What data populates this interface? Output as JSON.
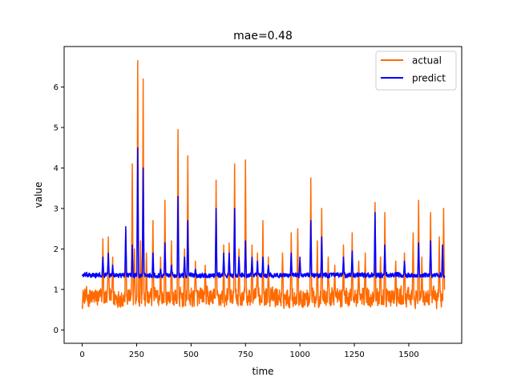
{
  "chart_data": {
    "type": "line",
    "title": "mae=0.48",
    "xlabel": "time",
    "ylabel": "value",
    "xlim": [
      -83,
      1743
    ],
    "ylim": [
      -0.33,
      7.0
    ],
    "x_ticks": [
      0,
      250,
      500,
      750,
      1000,
      1250,
      1500
    ],
    "y_ticks": [
      0,
      1,
      2,
      3,
      4,
      5,
      6
    ],
    "x_tick_labels": [
      "0",
      "250",
      "500",
      "750",
      "1000",
      "1250",
      "1500"
    ],
    "y_tick_labels": [
      "0",
      "1",
      "2",
      "3",
      "4",
      "5",
      "6"
    ],
    "grid": false,
    "legend_position": "top-right",
    "n_points": 1665,
    "series": [
      {
        "name": "actual",
        "color": "#ff6a00",
        "baseline": 0.8,
        "noise": 0.32,
        "min": 0.15,
        "spikes": [
          [
            95,
            2.25
          ],
          [
            120,
            2.3
          ],
          [
            140,
            1.8
          ],
          [
            200,
            2.5
          ],
          [
            230,
            4.1
          ],
          [
            240,
            2.0
          ],
          [
            255,
            6.65
          ],
          [
            268,
            2.2
          ],
          [
            280,
            6.2
          ],
          [
            295,
            1.9
          ],
          [
            325,
            2.7
          ],
          [
            360,
            1.8
          ],
          [
            380,
            3.2
          ],
          [
            410,
            2.2
          ],
          [
            440,
            4.95
          ],
          [
            470,
            2.0
          ],
          [
            485,
            4.3
          ],
          [
            520,
            1.7
          ],
          [
            565,
            1.6
          ],
          [
            615,
            3.7
          ],
          [
            650,
            2.1
          ],
          [
            675,
            2.15
          ],
          [
            700,
            4.1
          ],
          [
            720,
            2.0
          ],
          [
            750,
            4.2
          ],
          [
            780,
            2.1
          ],
          [
            805,
            1.9
          ],
          [
            830,
            2.7
          ],
          [
            855,
            1.8
          ],
          [
            920,
            1.9
          ],
          [
            960,
            2.4
          ],
          [
            990,
            2.5
          ],
          [
            1050,
            3.75
          ],
          [
            1080,
            2.2
          ],
          [
            1100,
            3.0
          ],
          [
            1130,
            1.8
          ],
          [
            1160,
            1.6
          ],
          [
            1200,
            2.1
          ],
          [
            1240,
            2.4
          ],
          [
            1270,
            1.7
          ],
          [
            1300,
            1.9
          ],
          [
            1345,
            3.15
          ],
          [
            1370,
            1.8
          ],
          [
            1390,
            2.9
          ],
          [
            1440,
            1.7
          ],
          [
            1480,
            1.9
          ],
          [
            1520,
            2.4
          ],
          [
            1545,
            3.2
          ],
          [
            1560,
            1.8
          ],
          [
            1600,
            2.9
          ],
          [
            1640,
            2.3
          ],
          [
            1660,
            3.0
          ]
        ]
      },
      {
        "name": "predict",
        "color": "#0000ff",
        "baseline": 1.35,
        "noise": 0.08,
        "min": 0.15,
        "spikes": [
          [
            95,
            1.8
          ],
          [
            120,
            1.9
          ],
          [
            140,
            1.6
          ],
          [
            200,
            2.55
          ],
          [
            230,
            2.1
          ],
          [
            255,
            4.5
          ],
          [
            268,
            0.3
          ],
          [
            280,
            4.0
          ],
          [
            295,
            0.2
          ],
          [
            325,
            1.9
          ],
          [
            360,
            1.5
          ],
          [
            380,
            2.15
          ],
          [
            410,
            1.6
          ],
          [
            440,
            3.3
          ],
          [
            470,
            1.8
          ],
          [
            485,
            2.7
          ],
          [
            520,
            1.5
          ],
          [
            615,
            3.0
          ],
          [
            650,
            1.9
          ],
          [
            675,
            1.9
          ],
          [
            700,
            3.0
          ],
          [
            720,
            1.8
          ],
          [
            750,
            2.2
          ],
          [
            780,
            1.8
          ],
          [
            805,
            1.7
          ],
          [
            830,
            1.8
          ],
          [
            855,
            1.6
          ],
          [
            960,
            1.9
          ],
          [
            1000,
            1.8
          ],
          [
            1050,
            2.7
          ],
          [
            1100,
            2.3
          ],
          [
            1200,
            1.8
          ],
          [
            1240,
            1.95
          ],
          [
            1345,
            2.9
          ],
          [
            1390,
            2.1
          ],
          [
            1480,
            1.7
          ],
          [
            1545,
            2.15
          ],
          [
            1600,
            2.2
          ],
          [
            1655,
            2.1
          ]
        ]
      }
    ]
  }
}
